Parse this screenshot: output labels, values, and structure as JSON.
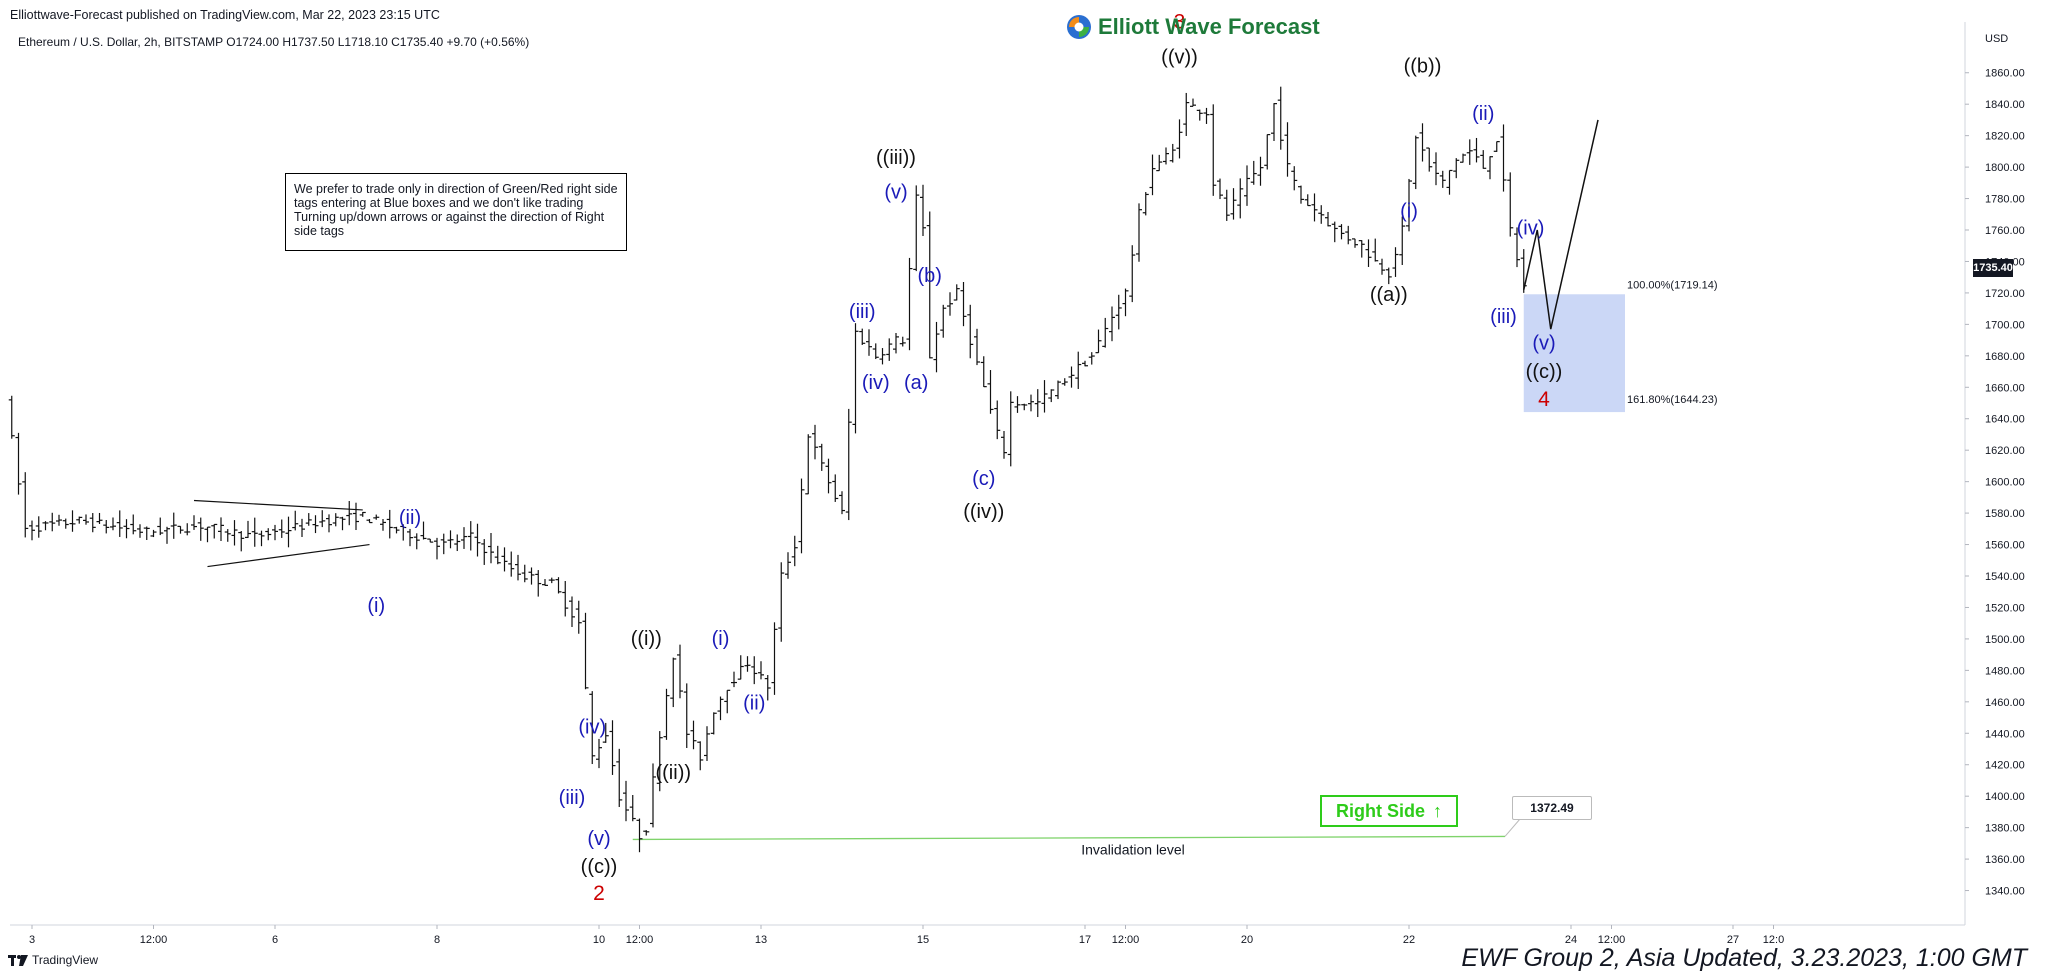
{
  "header": {
    "published": "Elliottwave-Forecast published on TradingView.com, Mar 22, 2023 23:15 UTC",
    "symbol_info": "Ethereum / U.S. Dollar, 2h, BITSTAMP  O1724.00  H1737.50  L1718.10  C1735.40  +9.70 (+0.56%)",
    "logo": "Elliott Wave Forecast"
  },
  "note": "We prefer to trade only in direction of Green/Red right side tags entering at Blue boxes and we don't like trading Turning up/down arrows or against the direction of Right side tags",
  "right_side_tag": {
    "label": "Right Side",
    "arrow": "↑",
    "color": "#2ecc1a"
  },
  "invalidation": {
    "label": "Invalidation level",
    "price": "1372.49"
  },
  "blue_box": {
    "fib_100": "100.00%(1719.14)",
    "fib_161": "161.80%(1644.23)",
    "color": "#c5d3f5"
  },
  "last_price": "1735.40",
  "footer": {
    "tradingview": "TradingView",
    "update": "EWF Group 2, Asia Updated, 3.23.2023, 1:00 GMT"
  },
  "colors": {
    "black": "#111111",
    "blue": "#1a1ab8",
    "red": "#cc0000",
    "green": "#2ecc1a"
  },
  "chart_data": {
    "type": "ohlc",
    "currency": "USD",
    "ylim": [
      1320,
      1870
    ],
    "y_ticks": [
      "1860.00",
      "1840.00",
      "1820.00",
      "1800.00",
      "1780.00",
      "1760.00",
      "1740.00",
      "1720.00",
      "1700.00",
      "1680.00",
      "1660.00",
      "1640.00",
      "1620.00",
      "1600.00",
      "1580.00",
      "1560.00",
      "1540.00",
      "1520.00",
      "1500.00",
      "1480.00",
      "1460.00",
      "1440.00",
      "1420.00",
      "1400.00",
      "1380.00",
      "1360.00",
      "1340.00"
    ],
    "x_ticks": [
      {
        "label": "3",
        "t": 0
      },
      {
        "label": "12:00",
        "t": 18
      },
      {
        "label": "6",
        "t": 36
      },
      {
        "label": "8",
        "t": 60
      },
      {
        "label": "10",
        "t": 84
      },
      {
        "label": "12:00",
        "t": 90
      },
      {
        "label": "13",
        "t": 108
      },
      {
        "label": "15",
        "t": 132
      },
      {
        "label": "17",
        "t": 156
      },
      {
        "label": "12:00",
        "t": 162
      },
      {
        "label": "20",
        "t": 180
      },
      {
        "label": "22",
        "t": 204
      },
      {
        "label": "24",
        "t": 228
      },
      {
        "label": "12:00",
        "t": 234
      },
      {
        "label": "27",
        "t": 252
      },
      {
        "label": "12:0",
        "t": 258
      }
    ],
    "path_points": [
      [
        -3,
        1655
      ],
      [
        0,
        1570
      ],
      [
        8,
        1575
      ],
      [
        18,
        1568
      ],
      [
        26,
        1572
      ],
      [
        34,
        1565
      ],
      [
        44,
        1575
      ],
      [
        50,
        1578
      ],
      [
        56,
        1568
      ],
      [
        62,
        1560
      ],
      [
        66,
        1565
      ],
      [
        70,
        1550
      ],
      [
        74,
        1540
      ],
      [
        78,
        1535
      ],
      [
        82,
        1510
      ],
      [
        84,
        1425
      ],
      [
        86,
        1440
      ],
      [
        88,
        1400
      ],
      [
        91,
        1375
      ],
      [
        92,
        1380
      ],
      [
        94,
        1440
      ],
      [
        96,
        1490
      ],
      [
        98,
        1440
      ],
      [
        100,
        1425
      ],
      [
        102,
        1455
      ],
      [
        104,
        1470
      ],
      [
        107,
        1485
      ],
      [
        110,
        1470
      ],
      [
        112,
        1540
      ],
      [
        114,
        1560
      ],
      [
        116,
        1630
      ],
      [
        118,
        1610
      ],
      [
        121,
        1580
      ],
      [
        123,
        1695
      ],
      [
        126,
        1680
      ],
      [
        129,
        1690
      ],
      [
        130,
        1690
      ],
      [
        132,
        1780
      ],
      [
        133,
        1760
      ],
      [
        134,
        1680
      ],
      [
        136,
        1710
      ],
      [
        138,
        1720
      ],
      [
        140,
        1690
      ],
      [
        142,
        1660
      ],
      [
        144,
        1630
      ],
      [
        145,
        1620
      ],
      [
        146,
        1650
      ],
      [
        150,
        1650
      ],
      [
        154,
        1665
      ],
      [
        158,
        1680
      ],
      [
        161,
        1705
      ],
      [
        163,
        1720
      ],
      [
        165,
        1770
      ],
      [
        167,
        1800
      ],
      [
        170,
        1810
      ],
      [
        172,
        1840
      ],
      [
        175,
        1835
      ],
      [
        176,
        1790
      ],
      [
        178,
        1770
      ],
      [
        181,
        1790
      ],
      [
        183,
        1800
      ],
      [
        185,
        1840
      ],
      [
        187,
        1800
      ],
      [
        189,
        1780
      ],
      [
        192,
        1770
      ],
      [
        194,
        1760
      ],
      [
        196,
        1755
      ],
      [
        198,
        1750
      ],
      [
        200,
        1740
      ],
      [
        202,
        1733
      ],
      [
        204,
        1760
      ],
      [
        206,
        1820
      ],
      [
        208,
        1800
      ],
      [
        210,
        1790
      ],
      [
        212,
        1805
      ],
      [
        214,
        1810
      ],
      [
        216,
        1800
      ],
      [
        218,
        1818
      ],
      [
        220,
        1760
      ],
      [
        222,
        1724
      ]
    ],
    "projection": [
      [
        221,
        1722
      ],
      [
        223,
        1760
      ],
      [
        225,
        1697
      ],
      [
        232,
        1830
      ]
    ],
    "invalidation_price": 1372.49,
    "fib_box": {
      "t0": 221,
      "t1": 236,
      "top": 1719.14,
      "bottom": 1644.23
    },
    "triangle": [
      [
        [
          24,
          1588
        ],
        [
          49,
          1582
        ]
      ],
      [
        [
          26,
          1546
        ],
        [
          50,
          1560
        ]
      ]
    ],
    "labels": [
      {
        "text": "3",
        "t": 170,
        "p": 1888,
        "color": "red"
      },
      {
        "text": "((v))",
        "t": 170,
        "p": 1866,
        "color": "black"
      },
      {
        "text": "((b))",
        "t": 206,
        "p": 1860,
        "color": "black"
      },
      {
        "text": "(ii)",
        "t": 215,
        "p": 1830,
        "color": "blue"
      },
      {
        "text": "(i)",
        "t": 204,
        "p": 1768,
        "color": "blue"
      },
      {
        "text": "((a))",
        "t": 201,
        "p": 1715,
        "color": "black"
      },
      {
        "text": "(iv)",
        "t": 222,
        "p": 1757,
        "color": "blue"
      },
      {
        "text": "(iii)",
        "t": 218,
        "p": 1701,
        "color": "blue"
      },
      {
        "text": "(v)",
        "t": 224,
        "p": 1684,
        "color": "blue"
      },
      {
        "text": "((c))",
        "t": 224,
        "p": 1666,
        "color": "black"
      },
      {
        "text": "4",
        "t": 224,
        "p": 1648,
        "color": "red"
      },
      {
        "text": "((iii))",
        "t": 128,
        "p": 1802,
        "color": "black"
      },
      {
        "text": "(v)",
        "t": 128,
        "p": 1780,
        "color": "blue"
      },
      {
        "text": "(b)",
        "t": 133,
        "p": 1727,
        "color": "blue"
      },
      {
        "text": "(iii)",
        "t": 123,
        "p": 1704,
        "color": "blue"
      },
      {
        "text": "(iv)",
        "t": 125,
        "p": 1659,
        "color": "blue"
      },
      {
        "text": "(a)",
        "t": 131,
        "p": 1659,
        "color": "blue"
      },
      {
        "text": "(c)",
        "t": 141,
        "p": 1598,
        "color": "blue"
      },
      {
        "text": "((iv))",
        "t": 141,
        "p": 1577,
        "color": "black"
      },
      {
        "text": "(ii)",
        "t": 56,
        "p": 1573,
        "color": "blue"
      },
      {
        "text": "(i)",
        "t": 51,
        "p": 1517,
        "color": "blue"
      },
      {
        "text": "((i))",
        "t": 91,
        "p": 1496,
        "color": "black"
      },
      {
        "text": "(i)",
        "t": 102,
        "p": 1496,
        "color": "blue"
      },
      {
        "text": "(ii)",
        "t": 107,
        "p": 1455,
        "color": "blue"
      },
      {
        "text": "((ii))",
        "t": 95,
        "p": 1411,
        "color": "black"
      },
      {
        "text": "(iv)",
        "t": 83,
        "p": 1440,
        "color": "blue"
      },
      {
        "text": "(iii)",
        "t": 80,
        "p": 1395,
        "color": "blue"
      },
      {
        "text": "(v)",
        "t": 84,
        "p": 1369,
        "color": "blue"
      },
      {
        "text": "((c))",
        "t": 84,
        "p": 1351,
        "color": "black"
      },
      {
        "text": "2",
        "t": 84,
        "p": 1334,
        "color": "red"
      }
    ]
  }
}
